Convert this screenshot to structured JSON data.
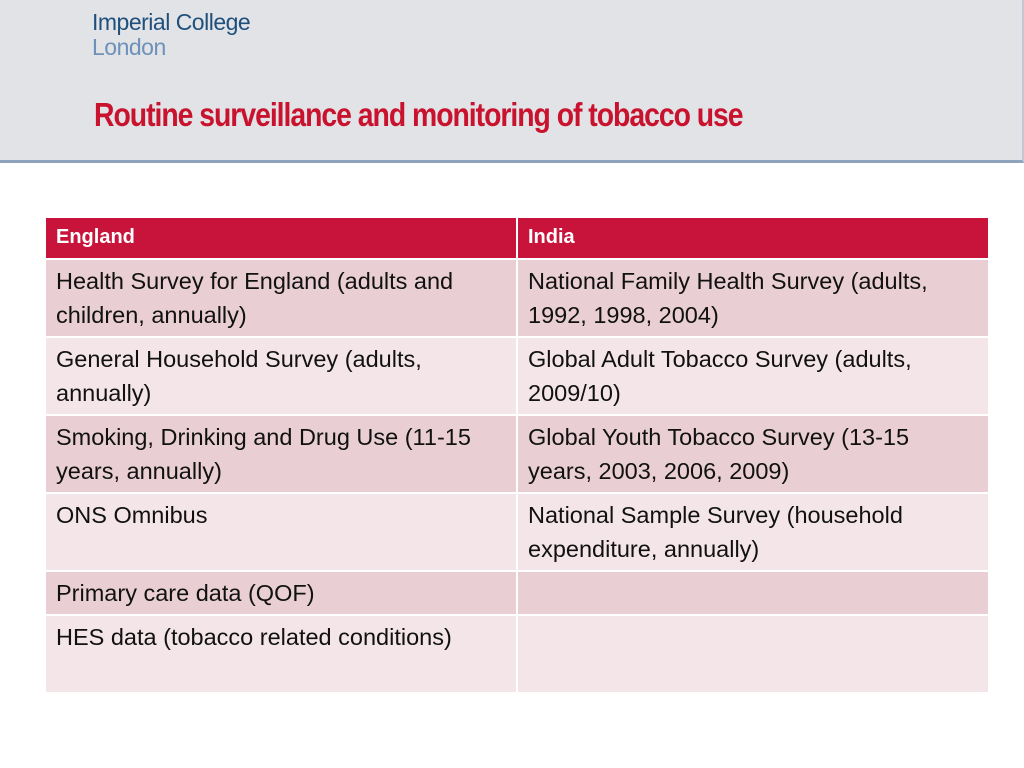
{
  "logo": {
    "line1": "Imperial College",
    "line2": "London"
  },
  "slide": {
    "title": "Routine surveillance and monitoring of tobacco use"
  },
  "table": {
    "headers": [
      "England",
      "India"
    ],
    "rows": [
      [
        "Health Survey for England (adults and children, annually)",
        "National Family Health Survey (adults, 1992, 1998, 2004)"
      ],
      [
        "General Household Survey (adults, annually)",
        "Global Adult Tobacco Survey (adults, 2009/10)"
      ],
      [
        "Smoking, Drinking and Drug Use (11-15 years, annually)",
        "Global Youth Tobacco Survey (13-15 years, 2003, 2006, 2009)"
      ],
      [
        "ONS Omnibus",
        "National Sample Survey (household expenditure, annually)"
      ],
      [
        "Primary care data (QOF)",
        ""
      ],
      [
        "HES data (tobacco related conditions)",
        ""
      ]
    ]
  },
  "colors": {
    "title": "#c9132e",
    "header_bg": "#c8133b",
    "row_odd": "#e9cfd3",
    "row_even": "#f4e6e8",
    "logo_dark": "#1f4f7b",
    "logo_light": "#6d91b8"
  }
}
